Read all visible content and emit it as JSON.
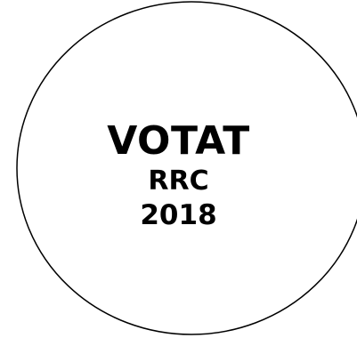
{
  "label": {
    "title": "VOTAT",
    "subtitle": "RRC",
    "year": "2018"
  },
  "colors": {
    "background": "#ffffff",
    "stroke": "#000000",
    "text": "#000000"
  }
}
